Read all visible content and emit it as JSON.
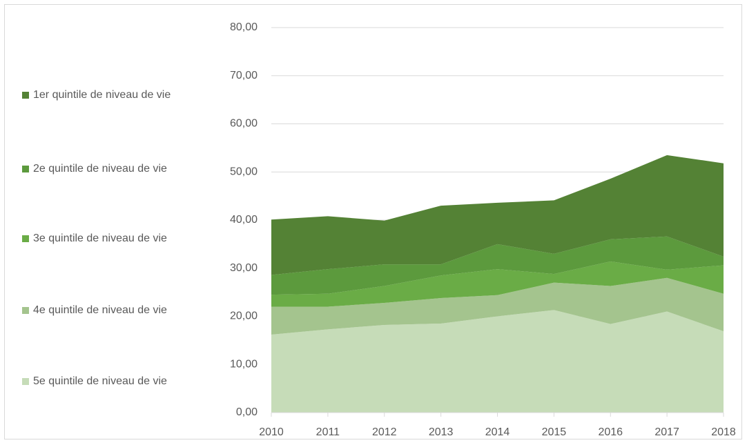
{
  "chart_data": {
    "type": "stacked-area",
    "categories": [
      "2010",
      "2011",
      "2012",
      "2013",
      "2014",
      "2015",
      "2016",
      "2017",
      "2018"
    ],
    "series": [
      {
        "name": "1er quintile de niveau de vie",
        "color": "#548235",
        "values": [
          11.5,
          11.0,
          9.1,
          12.2,
          8.6,
          11.1,
          12.6,
          16.9,
          19.4
        ]
      },
      {
        "name": "2e quintile de niveau de vie",
        "color": "#5c9a3d",
        "values": [
          4.1,
          5.1,
          4.5,
          2.3,
          5.2,
          4.2,
          4.6,
          6.9,
          1.8
        ]
      },
      {
        "name": "3e quintile de niveau de vie",
        "color": "#6aac46",
        "values": [
          2.5,
          2.7,
          3.5,
          4.7,
          5.4,
          1.8,
          5.1,
          1.7,
          5.9
        ]
      },
      {
        "name": "4e quintile de niveau de vie",
        "color": "#a4c48e",
        "values": [
          5.8,
          4.7,
          4.6,
          5.3,
          4.4,
          5.7,
          7.9,
          7.0,
          7.8
        ]
      },
      {
        "name": "5e quintile de niveau de vie",
        "color": "#c6dcb8",
        "values": [
          16.2,
          17.3,
          18.2,
          18.5,
          20.0,
          21.3,
          18.4,
          21.0,
          16.9
        ]
      }
    ],
    "ylim": [
      0,
      80
    ],
    "yticks": [
      {
        "value": 0,
        "label": "0,00"
      },
      {
        "value": 10,
        "label": "10,00"
      },
      {
        "value": 20,
        "label": "20,00"
      },
      {
        "value": 30,
        "label": "30,00"
      },
      {
        "value": 40,
        "label": "40,00"
      },
      {
        "value": 50,
        "label": "50,00"
      },
      {
        "value": 60,
        "label": "60,00"
      },
      {
        "value": 70,
        "label": "70,00"
      },
      {
        "value": 80,
        "label": "80,00"
      }
    ],
    "grid": true,
    "legend": "left"
  }
}
